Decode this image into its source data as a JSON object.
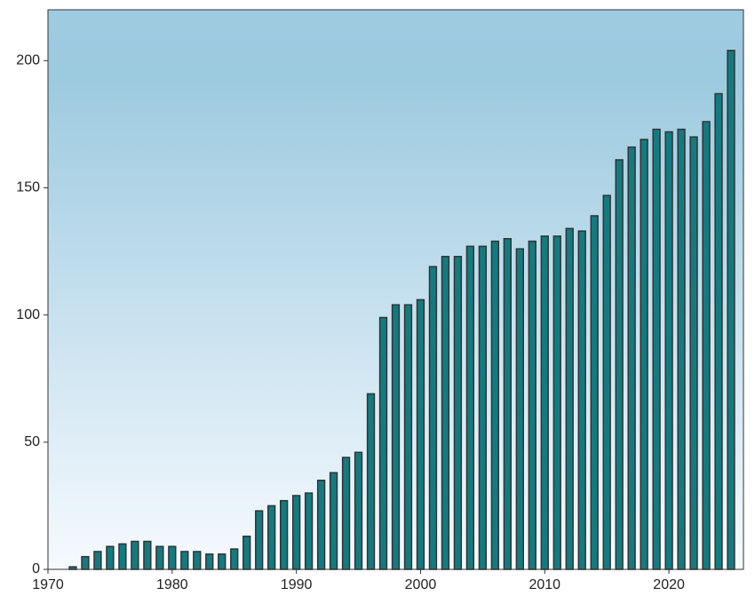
{
  "chart_data": {
    "type": "bar",
    "x": [
      1972,
      1973,
      1974,
      1975,
      1976,
      1977,
      1978,
      1979,
      1980,
      1981,
      1982,
      1983,
      1984,
      1985,
      1986,
      1987,
      1988,
      1989,
      1990,
      1991,
      1992,
      1993,
      1994,
      1995,
      1996,
      1997,
      1998,
      1999,
      2000,
      2001,
      2002,
      2003,
      2004,
      2005,
      2006,
      2007,
      2008,
      2009,
      2010,
      2011,
      2012,
      2013,
      2014,
      2015,
      2016,
      2017,
      2018,
      2019,
      2020,
      2021,
      2022,
      2023,
      2024,
      2025
    ],
    "values": [
      1,
      5,
      7,
      9,
      10,
      11,
      11,
      9,
      9,
      7,
      7,
      6,
      6,
      8,
      13,
      23,
      25,
      27,
      29,
      30,
      35,
      38,
      44,
      46,
      69,
      99,
      104,
      104,
      106,
      119,
      123,
      123,
      127,
      127,
      129,
      130,
      126,
      129,
      131,
      131,
      134,
      133,
      139,
      147,
      161,
      166,
      169,
      173,
      172,
      173,
      170,
      176,
      187,
      204
    ],
    "color": "#137b80",
    "xlim": [
      1970,
      2026
    ],
    "xticks": [
      1970,
      1980,
      1990,
      2000,
      2010,
      2020
    ],
    "ylim": [
      0,
      220
    ],
    "yticks": [
      0,
      50,
      100,
      150,
      200
    ]
  }
}
